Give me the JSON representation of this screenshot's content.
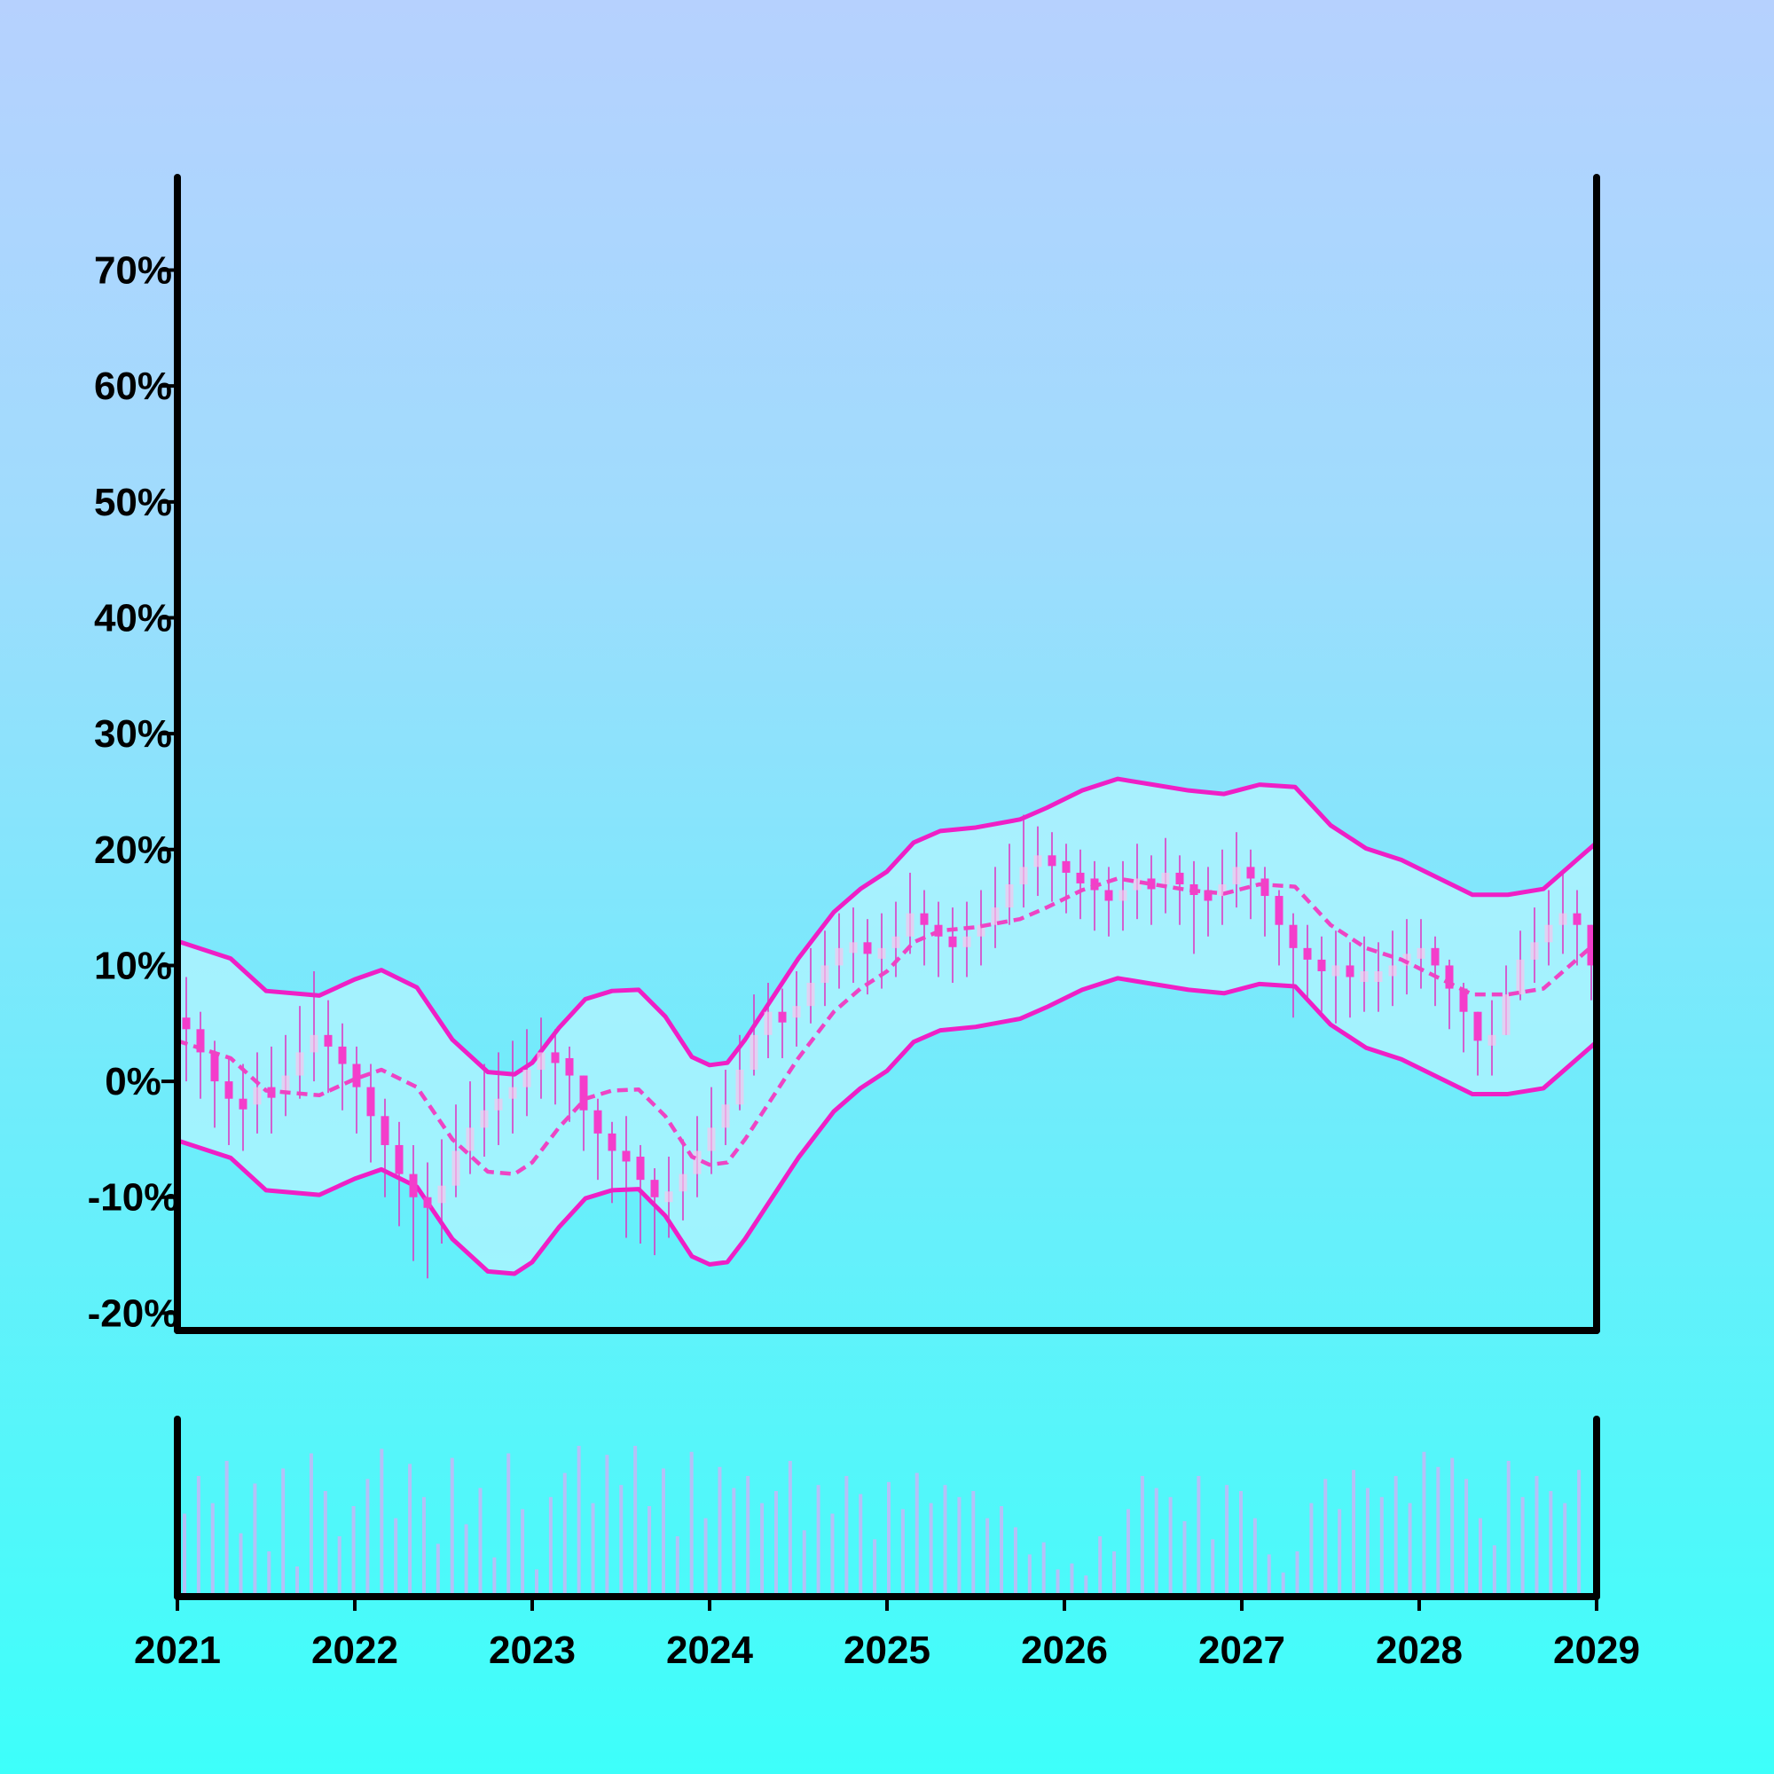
{
  "chart_data": {
    "type": "candlestick",
    "title": "",
    "xlabel": "",
    "ylabel": "",
    "x_ticks": [
      "2021",
      "2022",
      "2023",
      "2024",
      "2025",
      "2026",
      "2027",
      "2028",
      "2029"
    ],
    "x_range": [
      2021,
      2029
    ],
    "y_ticks": [
      "-20%",
      "-10%",
      "0%",
      "10%",
      "20%",
      "30%",
      "40%",
      "50%",
      "60%",
      "70%"
    ],
    "y_tick_values": [
      -20,
      -10,
      0,
      10,
      20,
      30,
      40,
      50,
      60,
      70
    ],
    "y_range": [
      -21.5,
      78
    ],
    "grid": false,
    "legend": "none",
    "band_halfwidth_pct": 8.6,
    "moving_average": {
      "style": "dashed",
      "x": [
        2021.0,
        2021.3,
        2021.5,
        2021.8,
        2022.0,
        2022.15,
        2022.35,
        2022.55,
        2022.75,
        2022.9,
        2023.0,
        2023.15,
        2023.3,
        2023.45,
        2023.6,
        2023.75,
        2023.9,
        2024.0,
        2024.1,
        2024.2,
        2024.35,
        2024.5,
        2024.7,
        2024.85,
        2025.0,
        2025.15,
        2025.3,
        2025.5,
        2025.75,
        2025.9,
        2026.1,
        2026.3,
        2026.5,
        2026.7,
        2026.9,
        2027.1,
        2027.3,
        2027.5,
        2027.7,
        2027.9,
        2028.1,
        2028.3,
        2028.5,
        2028.7,
        2028.85,
        2029.0
      ],
      "y": [
        3.5,
        2.0,
        -0.8,
        -1.2,
        0.2,
        1.0,
        -0.5,
        -5.0,
        -7.8,
        -8.0,
        -7.0,
        -4.0,
        -1.5,
        -0.8,
        -0.7,
        -3.0,
        -6.5,
        -7.2,
        -7.0,
        -5.0,
        -1.5,
        2.0,
        6.0,
        8.0,
        9.5,
        12.0,
        13.0,
        13.3,
        14.0,
        15.0,
        16.5,
        17.5,
        17.0,
        16.5,
        16.2,
        17.0,
        16.8,
        13.5,
        11.5,
        10.5,
        9.0,
        7.5,
        7.5,
        8.0,
        10.0,
        12.0
      ]
    },
    "candles": {
      "x": [
        2021.05,
        2021.13,
        2021.21,
        2021.29,
        2021.37,
        2021.45,
        2021.53,
        2021.61,
        2021.69,
        2021.77,
        2021.85,
        2021.93,
        2022.01,
        2022.09,
        2022.17,
        2022.25,
        2022.33,
        2022.41,
        2022.49,
        2022.57,
        2022.65,
        2022.73,
        2022.81,
        2022.89,
        2022.97,
        2023.05,
        2023.13,
        2023.21,
        2023.29,
        2023.37,
        2023.45,
        2023.53,
        2023.61,
        2023.69,
        2023.77,
        2023.85,
        2023.93,
        2024.01,
        2024.09,
        2024.17,
        2024.25,
        2024.33,
        2024.41,
        2024.49,
        2024.57,
        2024.65,
        2024.73,
        2024.81,
        2024.89,
        2024.97,
        2025.05,
        2025.13,
        2025.21,
        2025.29,
        2025.37,
        2025.45,
        2025.53,
        2025.61,
        2025.69,
        2025.77,
        2025.85,
        2025.93,
        2026.01,
        2026.09,
        2026.17,
        2026.25,
        2026.33,
        2026.41,
        2026.49,
        2026.57,
        2026.65,
        2026.73,
        2026.81,
        2026.89,
        2026.97,
        2027.05,
        2027.13,
        2027.21,
        2027.29,
        2027.37,
        2027.45,
        2027.53,
        2027.61,
        2027.69,
        2027.77,
        2027.85,
        2027.93,
        2028.01,
        2028.09,
        2028.17,
        2028.25,
        2028.33,
        2028.41,
        2028.49,
        2028.57,
        2028.65,
        2028.73,
        2028.81,
        2028.89,
        2028.97
      ],
      "close": [
        4.5,
        2.5,
        0.0,
        -1.5,
        -2.0,
        -0.5,
        -0.8,
        0.5,
        2.5,
        4.0,
        3.0,
        1.5,
        -0.5,
        -3.0,
        -5.5,
        -8.0,
        -10.0,
        -10.5,
        -9.0,
        -6.0,
        -4.0,
        -2.5,
        -1.5,
        -0.5,
        1.0,
        2.5,
        2.0,
        0.5,
        -2.5,
        -4.5,
        -6.0,
        -6.5,
        -8.5,
        -10.0,
        -9.5,
        -8.0,
        -6.0,
        -4.0,
        -2.0,
        1.0,
        4.0,
        6.0,
        5.5,
        6.5,
        8.5,
        10.0,
        11.5,
        12.0,
        11.0,
        11.5,
        12.5,
        14.5,
        13.5,
        12.5,
        12.0,
        12.5,
        13.5,
        15.0,
        17.0,
        18.5,
        19.5,
        19.0,
        18.0,
        17.5,
        16.5,
        16.0,
        16.5,
        17.5,
        17.0,
        18.0,
        17.0,
        16.5,
        16.0,
        17.0,
        18.5,
        17.5,
        16.0,
        13.5,
        11.5,
        10.5,
        9.5,
        10.0,
        9.0,
        9.5,
        9.5,
        10.0,
        11.0,
        11.5,
        10.0,
        8.0,
        6.0,
        3.5,
        4.0,
        7.5,
        10.5,
        12.0,
        13.5,
        14.5,
        13.5,
        10.0
      ],
      "high": [
        9.0,
        6.0,
        3.5,
        2.0,
        1.5,
        2.5,
        3.0,
        4.0,
        6.5,
        9.5,
        7.0,
        5.0,
        3.0,
        1.5,
        -1.5,
        -3.5,
        -5.5,
        -7.0,
        -5.0,
        -2.0,
        0.0,
        1.5,
        2.5,
        3.5,
        4.5,
        5.5,
        4.5,
        3.0,
        0.5,
        -1.5,
        -3.5,
        -3.0,
        -5.5,
        -7.5,
        -6.5,
        -5.0,
        -3.0,
        -0.5,
        1.0,
        4.0,
        7.5,
        8.5,
        8.0,
        9.5,
        11.5,
        13.0,
        14.5,
        15.0,
        14.0,
        14.5,
        15.5,
        18.0,
        16.5,
        15.5,
        15.0,
        15.5,
        16.5,
        18.5,
        20.5,
        23.0,
        22.0,
        21.5,
        20.5,
        20.0,
        19.0,
        18.5,
        19.0,
        20.5,
        19.5,
        21.0,
        19.5,
        19.0,
        18.5,
        20.0,
        21.5,
        20.0,
        18.5,
        16.5,
        14.5,
        13.5,
        12.5,
        13.0,
        12.0,
        12.5,
        12.0,
        13.0,
        14.0,
        14.0,
        12.5,
        10.5,
        8.5,
        6.0,
        7.0,
        10.0,
        13.0,
        15.0,
        16.5,
        18.0,
        16.5,
        13.5
      ],
      "low": [
        0.0,
        -1.5,
        -4.0,
        -5.5,
        -6.0,
        -4.5,
        -4.5,
        -3.0,
        -1.5,
        0.0,
        -1.0,
        -2.5,
        -4.5,
        -7.0,
        -10.0,
        -12.5,
        -15.5,
        -17.0,
        -14.0,
        -10.0,
        -8.0,
        -6.5,
        -5.5,
        -4.5,
        -3.0,
        -1.5,
        -2.0,
        -3.5,
        -6.0,
        -8.5,
        -10.5,
        -13.5,
        -14.0,
        -15.0,
        -13.5,
        -12.0,
        -10.0,
        -8.0,
        -5.5,
        -2.5,
        0.5,
        2.0,
        2.0,
        3.0,
        5.0,
        6.5,
        8.0,
        8.5,
        7.5,
        8.0,
        9.0,
        11.0,
        10.0,
        9.0,
        8.5,
        9.0,
        10.0,
        11.5,
        13.5,
        15.0,
        16.0,
        15.5,
        14.5,
        14.0,
        13.0,
        12.5,
        13.0,
        14.0,
        13.5,
        14.5,
        13.5,
        11.0,
        12.5,
        13.5,
        15.0,
        14.0,
        12.5,
        10.0,
        5.5,
        7.0,
        6.0,
        5.0,
        5.5,
        6.0,
        6.0,
        6.5,
        7.5,
        8.0,
        6.5,
        4.5,
        2.5,
        0.5,
        0.5,
        4.0,
        7.0,
        8.5,
        10.0,
        11.0,
        10.0,
        7.0
      ]
    },
    "volume": [
      0.55,
      0.8,
      0.62,
      0.9,
      0.42,
      0.75,
      0.3,
      0.85,
      0.2,
      0.95,
      0.7,
      0.4,
      0.6,
      0.78,
      0.98,
      0.52,
      0.88,
      0.66,
      0.35,
      0.92,
      0.48,
      0.72,
      0.26,
      0.95,
      0.58,
      0.18,
      0.66,
      0.82,
      1.0,
      0.62,
      0.94,
      0.74,
      1.0,
      0.6,
      0.85,
      0.4,
      0.96,
      0.52,
      0.86,
      0.72,
      0.8,
      0.62,
      0.7,
      0.9,
      0.44,
      0.74,
      0.55,
      0.8,
      0.68,
      0.38,
      0.76,
      0.58,
      0.82,
      0.62,
      0.74,
      0.66,
      0.7,
      0.52,
      0.6,
      0.46,
      0.28,
      0.36,
      0.18,
      0.22,
      0.14,
      0.4,
      0.3,
      0.58,
      0.8,
      0.72,
      0.66,
      0.5,
      0.8,
      0.38,
      0.74,
      0.7,
      0.52,
      0.28,
      0.16,
      0.3,
      0.62,
      0.78,
      0.58,
      0.84,
      0.72,
      0.66,
      0.8,
      0.62,
      0.96,
      0.86,
      0.92,
      0.78,
      0.52,
      0.34,
      0.9,
      0.66,
      0.8,
      0.7,
      0.62,
      0.84
    ]
  },
  "colors": {
    "candle": "#f43dcb",
    "band_line": "#ef1fc6",
    "band_fill": "#b3f4ff",
    "ma_line": "#ee44c4",
    "wick": "#e02fc0",
    "volume_bar": "#b5c0f7",
    "axis": "#000000",
    "text": "#000000"
  }
}
